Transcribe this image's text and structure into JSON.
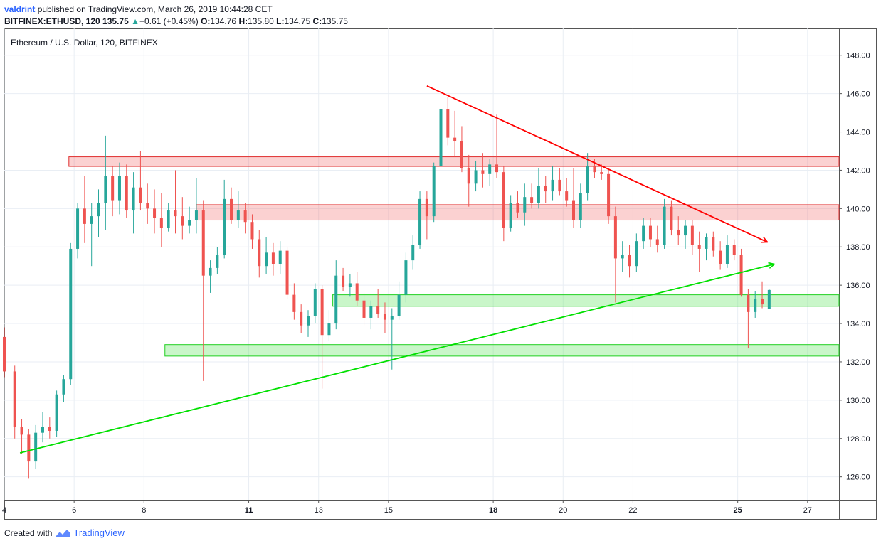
{
  "header": {
    "author": "valdrint",
    "published_text": "published on TradingView.com, March 26, 2019 10:44:28 CET",
    "symbol": "BITFINEX:ETHUSD, 120",
    "last": "135.75",
    "change": "+0.61 (+0.45%)",
    "o_label": "O:",
    "open": "134.76",
    "h_label": "H:",
    "high": "135.80",
    "l_label": "L:",
    "low": "134.75",
    "c_label": "C:",
    "close": "135.75"
  },
  "chart_title": "Ethereum / U.S. Dollar, 120, BITFINEX",
  "footer": {
    "created_with": "Created with",
    "brand": "TradingView"
  },
  "colors": {
    "up": "#26a69a",
    "down": "#ef5350",
    "resistance": "#ff0000",
    "support": "#00e000",
    "grid": "#e9eef4"
  },
  "chart_data": {
    "type": "candlestick",
    "ylim": [
      124.8,
      149.4
    ],
    "y_ticks": [
      "148.00",
      "146.00",
      "144.00",
      "142.00",
      "140.00",
      "138.00",
      "136.00",
      "134.00",
      "132.00",
      "130.00",
      "128.00",
      "126.00"
    ],
    "x_ticks": [
      "4",
      "6",
      "8",
      "11",
      "13",
      "15",
      "18",
      "20",
      "22",
      "25",
      "27"
    ],
    "x_tick_days": [
      4,
      6,
      8,
      11,
      13,
      15,
      18,
      20,
      22,
      25,
      27
    ],
    "xlim": [
      4,
      27.9
    ],
    "candles": [
      [
        4.0,
        133.3,
        133.8,
        131.2,
        131.5
      ],
      [
        4.3,
        131.5,
        131.8,
        128.0,
        128.6
      ],
      [
        4.5,
        128.6,
        129.0,
        127.2,
        128.2
      ],
      [
        4.7,
        128.2,
        128.5,
        125.9,
        126.8
      ],
      [
        4.9,
        126.8,
        128.7,
        126.4,
        128.3
      ],
      [
        5.1,
        128.3,
        129.4,
        127.8,
        128.6
      ],
      [
        5.3,
        128.6,
        129.1,
        128.0,
        128.4
      ],
      [
        5.5,
        128.4,
        130.5,
        128.1,
        130.3
      ],
      [
        5.7,
        130.3,
        131.3,
        129.9,
        131.1
      ],
      [
        5.9,
        131.1,
        138.2,
        130.8,
        137.9
      ],
      [
        6.1,
        137.9,
        140.3,
        137.4,
        140.0
      ],
      [
        6.3,
        140.0,
        141.7,
        138.2,
        139.2
      ],
      [
        6.5,
        139.2,
        140.3,
        137.0,
        139.6
      ],
      [
        6.7,
        139.6,
        141.0,
        138.5,
        140.3
      ],
      [
        6.9,
        140.3,
        143.8,
        138.9,
        141.7
      ],
      [
        7.1,
        141.7,
        142.2,
        139.6,
        140.4
      ],
      [
        7.3,
        140.4,
        142.4,
        139.7,
        141.7
      ],
      [
        7.5,
        141.7,
        142.3,
        139.5,
        139.9
      ],
      [
        7.7,
        139.9,
        141.9,
        138.7,
        141.1
      ],
      [
        7.9,
        141.1,
        143.0,
        139.9,
        140.3
      ],
      [
        8.1,
        140.3,
        141.3,
        139.2,
        140.0
      ],
      [
        8.3,
        140.0,
        141.0,
        138.7,
        139.5
      ],
      [
        8.5,
        139.5,
        140.8,
        138.0,
        139.0
      ],
      [
        8.7,
        139.0,
        140.3,
        138.8,
        139.9
      ],
      [
        8.9,
        139.9,
        142.0,
        138.7,
        139.6
      ],
      [
        9.1,
        139.6,
        140.6,
        138.4,
        139.1
      ],
      [
        9.3,
        139.1,
        140.1,
        138.7,
        139.4
      ],
      [
        9.5,
        139.4,
        141.6,
        138.7,
        139.9
      ],
      [
        9.7,
        139.9,
        140.4,
        131.0,
        136.5
      ],
      [
        9.9,
        136.5,
        137.3,
        135.6,
        136.9
      ],
      [
        10.1,
        136.9,
        138.0,
        136.6,
        137.6
      ],
      [
        10.3,
        137.6,
        141.5,
        137.4,
        140.5
      ],
      [
        10.5,
        140.5,
        141.1,
        139.2,
        139.4
      ],
      [
        10.7,
        139.4,
        140.9,
        139.0,
        139.9
      ],
      [
        10.9,
        139.9,
        140.3,
        138.7,
        139.3
      ],
      [
        11.1,
        139.3,
        139.7,
        137.9,
        138.4
      ],
      [
        11.3,
        138.4,
        138.9,
        136.4,
        137.0
      ],
      [
        11.5,
        137.0,
        138.5,
        136.6,
        137.7
      ],
      [
        11.7,
        137.7,
        138.2,
        136.5,
        137.1
      ],
      [
        11.9,
        137.1,
        138.3,
        136.6,
        137.8
      ],
      [
        12.1,
        137.8,
        138.0,
        135.3,
        135.5
      ],
      [
        12.3,
        135.5,
        136.1,
        134.2,
        134.6
      ],
      [
        12.5,
        134.6,
        135.0,
        133.5,
        133.9
      ],
      [
        12.7,
        133.9,
        134.7,
        133.3,
        134.4
      ],
      [
        12.9,
        134.4,
        136.1,
        134.0,
        135.8
      ],
      [
        13.1,
        135.8,
        136.0,
        130.6,
        133.4
      ],
      [
        13.3,
        133.4,
        134.7,
        133.1,
        134.0
      ],
      [
        13.5,
        134.0,
        137.3,
        133.7,
        136.5
      ],
      [
        13.7,
        136.5,
        136.9,
        135.7,
        135.9
      ],
      [
        13.9,
        135.9,
        136.6,
        135.4,
        136.1
      ],
      [
        14.1,
        136.1,
        136.7,
        134.9,
        135.2
      ],
      [
        14.3,
        135.2,
        135.6,
        133.9,
        134.3
      ],
      [
        14.5,
        134.3,
        135.2,
        133.7,
        134.9
      ],
      [
        14.7,
        134.9,
        135.8,
        134.3,
        134.5
      ],
      [
        14.9,
        134.5,
        135.1,
        133.5,
        134.2
      ],
      [
        15.1,
        134.2,
        134.8,
        131.6,
        134.4
      ],
      [
        15.3,
        134.4,
        136.2,
        134.2,
        135.5
      ],
      [
        15.5,
        135.5,
        137.7,
        135.1,
        137.3
      ],
      [
        15.7,
        137.3,
        138.6,
        136.8,
        138.1
      ],
      [
        15.9,
        138.1,
        140.9,
        137.9,
        140.5
      ],
      [
        16.1,
        140.5,
        140.9,
        138.4,
        139.6
      ],
      [
        16.3,
        139.6,
        142.4,
        139.3,
        142.2
      ],
      [
        16.5,
        142.2,
        146.1,
        141.7,
        145.2
      ],
      [
        16.7,
        145.2,
        145.8,
        143.3,
        143.7
      ],
      [
        16.9,
        143.7,
        145.1,
        142.7,
        143.5
      ],
      [
        17.1,
        143.5,
        144.3,
        141.9,
        142.1
      ],
      [
        17.3,
        142.1,
        142.8,
        140.1,
        141.3
      ],
      [
        17.5,
        141.3,
        142.5,
        140.9,
        142.0
      ],
      [
        17.7,
        142.0,
        142.9,
        141.1,
        141.8
      ],
      [
        17.9,
        141.8,
        142.6,
        141.2,
        142.3
      ],
      [
        18.1,
        142.3,
        144.9,
        141.6,
        141.9
      ],
      [
        18.3,
        141.9,
        142.2,
        138.3,
        139.0
      ],
      [
        18.5,
        139.0,
        140.7,
        138.8,
        140.3
      ],
      [
        18.7,
        140.3,
        140.9,
        139.5,
        139.8
      ],
      [
        18.9,
        139.8,
        141.3,
        139.1,
        140.6
      ],
      [
        19.1,
        140.6,
        141.3,
        140.0,
        140.3
      ],
      [
        19.3,
        140.3,
        142.1,
        140.0,
        141.2
      ],
      [
        19.5,
        141.2,
        141.7,
        140.3,
        140.9
      ],
      [
        19.7,
        140.9,
        142.2,
        140.4,
        141.5
      ],
      [
        19.9,
        141.5,
        142.1,
        140.7,
        140.9
      ],
      [
        20.1,
        140.9,
        141.6,
        140.1,
        140.4
      ],
      [
        20.3,
        140.4,
        142.1,
        139.0,
        139.4
      ],
      [
        20.5,
        139.4,
        141.3,
        139.0,
        140.8
      ],
      [
        20.7,
        140.8,
        142.9,
        140.4,
        142.2
      ],
      [
        20.9,
        142.2,
        142.6,
        141.6,
        141.9
      ],
      [
        21.1,
        141.9,
        142.3,
        141.5,
        141.8
      ],
      [
        21.3,
        141.8,
        142.1,
        139.2,
        139.6
      ],
      [
        21.5,
        139.6,
        140.1,
        135.1,
        137.4
      ],
      [
        21.7,
        137.4,
        138.3,
        136.7,
        137.6
      ],
      [
        21.9,
        137.6,
        138.1,
        136.4,
        137.0
      ],
      [
        22.1,
        137.0,
        138.7,
        136.7,
        138.3
      ],
      [
        22.3,
        138.3,
        139.5,
        137.9,
        139.1
      ],
      [
        22.5,
        139.1,
        139.5,
        138.0,
        138.4
      ],
      [
        22.7,
        138.4,
        139.1,
        137.7,
        138.1
      ],
      [
        22.9,
        138.1,
        140.5,
        137.9,
        140.1
      ],
      [
        23.1,
        140.1,
        140.4,
        138.6,
        138.9
      ],
      [
        23.3,
        138.9,
        139.6,
        138.1,
        138.6
      ],
      [
        23.5,
        138.6,
        139.4,
        137.9,
        139.1
      ],
      [
        23.7,
        139.1,
        139.4,
        137.6,
        138.1
      ],
      [
        23.9,
        138.1,
        138.8,
        136.7,
        137.9
      ],
      [
        24.1,
        137.9,
        138.7,
        137.3,
        138.5
      ],
      [
        24.3,
        138.5,
        138.8,
        137.5,
        137.8
      ],
      [
        24.5,
        137.8,
        138.3,
        136.8,
        137.1
      ],
      [
        24.7,
        137.1,
        138.6,
        136.9,
        138.1
      ],
      [
        24.9,
        138.1,
        138.4,
        137.3,
        137.6
      ],
      [
        25.1,
        137.6,
        137.9,
        135.4,
        135.5
      ],
      [
        25.3,
        135.5,
        135.8,
        132.7,
        134.6
      ],
      [
        25.5,
        134.6,
        135.7,
        134.3,
        135.3
      ],
      [
        25.7,
        135.3,
        136.2,
        134.8,
        135.0
      ],
      [
        25.9,
        134.76,
        135.8,
        134.75,
        135.75
      ]
    ],
    "zones": [
      {
        "kind": "resistance",
        "x1": 5.85,
        "x2": 27.9,
        "y1": 142.2,
        "y2": 142.7
      },
      {
        "kind": "resistance",
        "x1": 9.5,
        "x2": 27.9,
        "y1": 139.4,
        "y2": 140.2
      },
      {
        "kind": "support",
        "x1": 13.4,
        "x2": 27.9,
        "y1": 134.9,
        "y2": 135.5
      },
      {
        "kind": "support",
        "x1": 8.6,
        "x2": 27.9,
        "y1": 132.3,
        "y2": 132.9
      }
    ],
    "trendlines": [
      {
        "kind": "resistance",
        "x1": 16.1,
        "y1": 146.4,
        "x2": 25.85,
        "y2": 138.25
      },
      {
        "kind": "support",
        "x1": 4.45,
        "y1": 127.25,
        "x2": 26.05,
        "y2": 137.1
      }
    ]
  }
}
